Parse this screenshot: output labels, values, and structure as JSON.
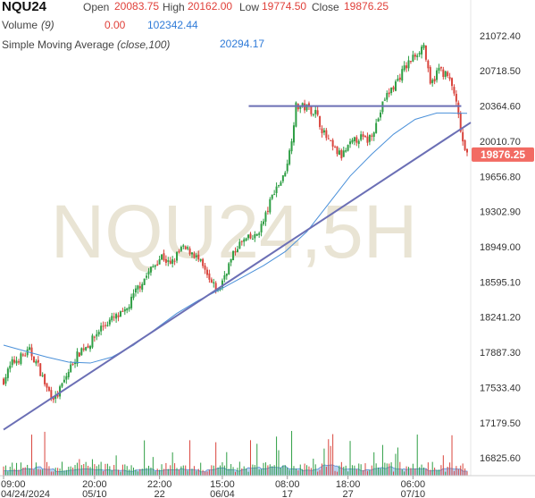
{
  "header": {
    "symbol": "NQU24",
    "open_label": "Open",
    "open_value": "20083.75",
    "high_label": "High",
    "high_value": "20162.00",
    "low_label": "Low",
    "low_value": "19774.50",
    "close_label": "Close",
    "close_value": "19876.25",
    "volume_label": "Volume",
    "volume_param": "(9)",
    "volume_change": "0.00",
    "volume_value": "102342.44",
    "sma_label": "Simple Moving Average",
    "sma_param": "(close,100)",
    "sma_value": "20294.17"
  },
  "watermark": "NQU24,5H",
  "last_price_tag": "19876.25",
  "colors": {
    "up": "#2e9e44",
    "down": "#d9443c",
    "sma": "#4a90d9",
    "trendline": "#6b6fb5",
    "volume_fill": "#a9c7ee",
    "price_tag": "#f26b63"
  },
  "chart_data": {
    "type": "candlestick",
    "ylim": [
      16648,
      21250
    ],
    "y_ticks": [
      "21072.40",
      "20718.50",
      "20364.60",
      "20010.70",
      "19656.80",
      "19302.90",
      "18949.00",
      "18595.10",
      "18241.20",
      "17887.30",
      "17533.40",
      "17179.50",
      "16825.60"
    ],
    "x_tick_times": [
      "09:00",
      "20:00",
      "22:00",
      "15:00",
      "08:00",
      "18:00",
      "06:00"
    ],
    "x_tick_dates": [
      "04/24/2024",
      "05/10",
      "22",
      "06/04",
      "17",
      "27",
      "07/10"
    ],
    "x_tick_bar_index": [
      0,
      42,
      72,
      101,
      131,
      159,
      189
    ],
    "close_path": [
      [
        0,
        17610
      ],
      [
        4,
        17780
      ],
      [
        8,
        17840
      ],
      [
        12,
        17900
      ],
      [
        16,
        17750
      ],
      [
        20,
        17520
      ],
      [
        24,
        17420
      ],
      [
        28,
        17600
      ],
      [
        32,
        17790
      ],
      [
        36,
        17920
      ],
      [
        40,
        17980
      ],
      [
        45,
        18140
      ],
      [
        50,
        18220
      ],
      [
        56,
        18280
      ],
      [
        62,
        18540
      ],
      [
        68,
        18720
      ],
      [
        73,
        18860
      ],
      [
        77,
        18760
      ],
      [
        82,
        18930
      ],
      [
        87,
        18900
      ],
      [
        91,
        18780
      ],
      [
        95,
        18600
      ],
      [
        99,
        18500
      ],
      [
        103,
        18720
      ],
      [
        108,
        18960
      ],
      [
        112,
        19020
      ],
      [
        116,
        19040
      ],
      [
        120,
        19200
      ],
      [
        125,
        19520
      ],
      [
        129,
        19640
      ],
      [
        132,
        19900
      ],
      [
        135,
        20360
      ],
      [
        140,
        20350
      ],
      [
        144,
        20300
      ],
      [
        148,
        20080
      ],
      [
        152,
        19940
      ],
      [
        156,
        19860
      ],
      [
        160,
        19970
      ],
      [
        164,
        20050
      ],
      [
        168,
        20020
      ],
      [
        172,
        20180
      ],
      [
        176,
        20440
      ],
      [
        180,
        20560
      ],
      [
        185,
        20740
      ],
      [
        190,
        20880
      ],
      [
        194,
        20980
      ],
      [
        197,
        20560
      ],
      [
        201,
        20740
      ],
      [
        205,
        20660
      ],
      [
        208,
        20500
      ],
      [
        211,
        20120
      ],
      [
        213,
        19880
      ]
    ],
    "volume_mean": 0.06,
    "sma100_path": [
      [
        0,
        17960
      ],
      [
        10,
        17900
      ],
      [
        20,
        17840
      ],
      [
        30,
        17790
      ],
      [
        40,
        17780
      ],
      [
        50,
        17840
      ],
      [
        60,
        17960
      ],
      [
        70,
        18120
      ],
      [
        80,
        18280
      ],
      [
        90,
        18410
      ],
      [
        100,
        18520
      ],
      [
        110,
        18640
      ],
      [
        120,
        18760
      ],
      [
        130,
        18900
      ],
      [
        140,
        19100
      ],
      [
        150,
        19380
      ],
      [
        160,
        19660
      ],
      [
        170,
        19880
      ],
      [
        180,
        20080
      ],
      [
        190,
        20230
      ],
      [
        200,
        20294
      ],
      [
        206,
        20294
      ],
      [
        214,
        20290
      ]
    ],
    "resistance_line": {
      "from": [
        114,
        20364
      ],
      "to": [
        208,
        20364
      ]
    },
    "trend_line": {
      "from": [
        0,
        17110
      ],
      "to": [
        214,
        20180
      ]
    },
    "last_close": 19876.25
  }
}
